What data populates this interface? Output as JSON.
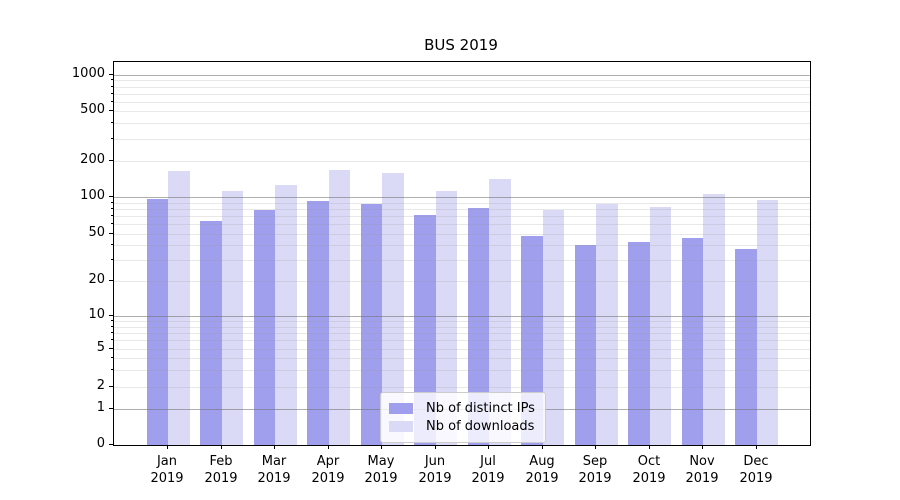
{
  "chart_data": {
    "type": "bar",
    "title": "BUS 2019",
    "categories": [
      "Jan 2019",
      "Feb 2019",
      "Mar 2019",
      "Apr 2019",
      "May 2019",
      "Jun 2019",
      "Jul 2019",
      "Aug 2019",
      "Sep 2019",
      "Oct 2019",
      "Nov 2019",
      "Dec 2019"
    ],
    "series": [
      {
        "name": "Nb of distinct IPs",
        "color": "#9f9fee",
        "values": [
          96,
          64,
          79,
          92,
          87,
          71,
          81,
          48,
          40,
          43,
          46,
          37
        ]
      },
      {
        "name": "Nb of downloads",
        "color": "#dadaf7",
        "values": [
          164,
          113,
          127,
          167,
          158,
          113,
          141,
          79,
          87,
          83,
          105,
          94
        ]
      }
    ],
    "xlabel": "",
    "ylabel": "",
    "yscale": "symlog",
    "yticks": [
      0,
      1,
      2,
      5,
      10,
      20,
      50,
      100,
      200,
      500,
      1000
    ],
    "ylim": [
      0,
      1280
    ],
    "grid": "horizontal major and minor gridlines, drawn above bars",
    "legend_position": "lower center",
    "bar_layout": "grouped pairs, no gap within pair"
  },
  "colors": {
    "grid_major": "rgba(110,110,110,0.55)",
    "grid_minor": "rgba(150,150,150,0.22)",
    "spine": "#000000",
    "legend_border": "#cccccc",
    "legend_background": "rgba(255,255,255,0.8)"
  }
}
